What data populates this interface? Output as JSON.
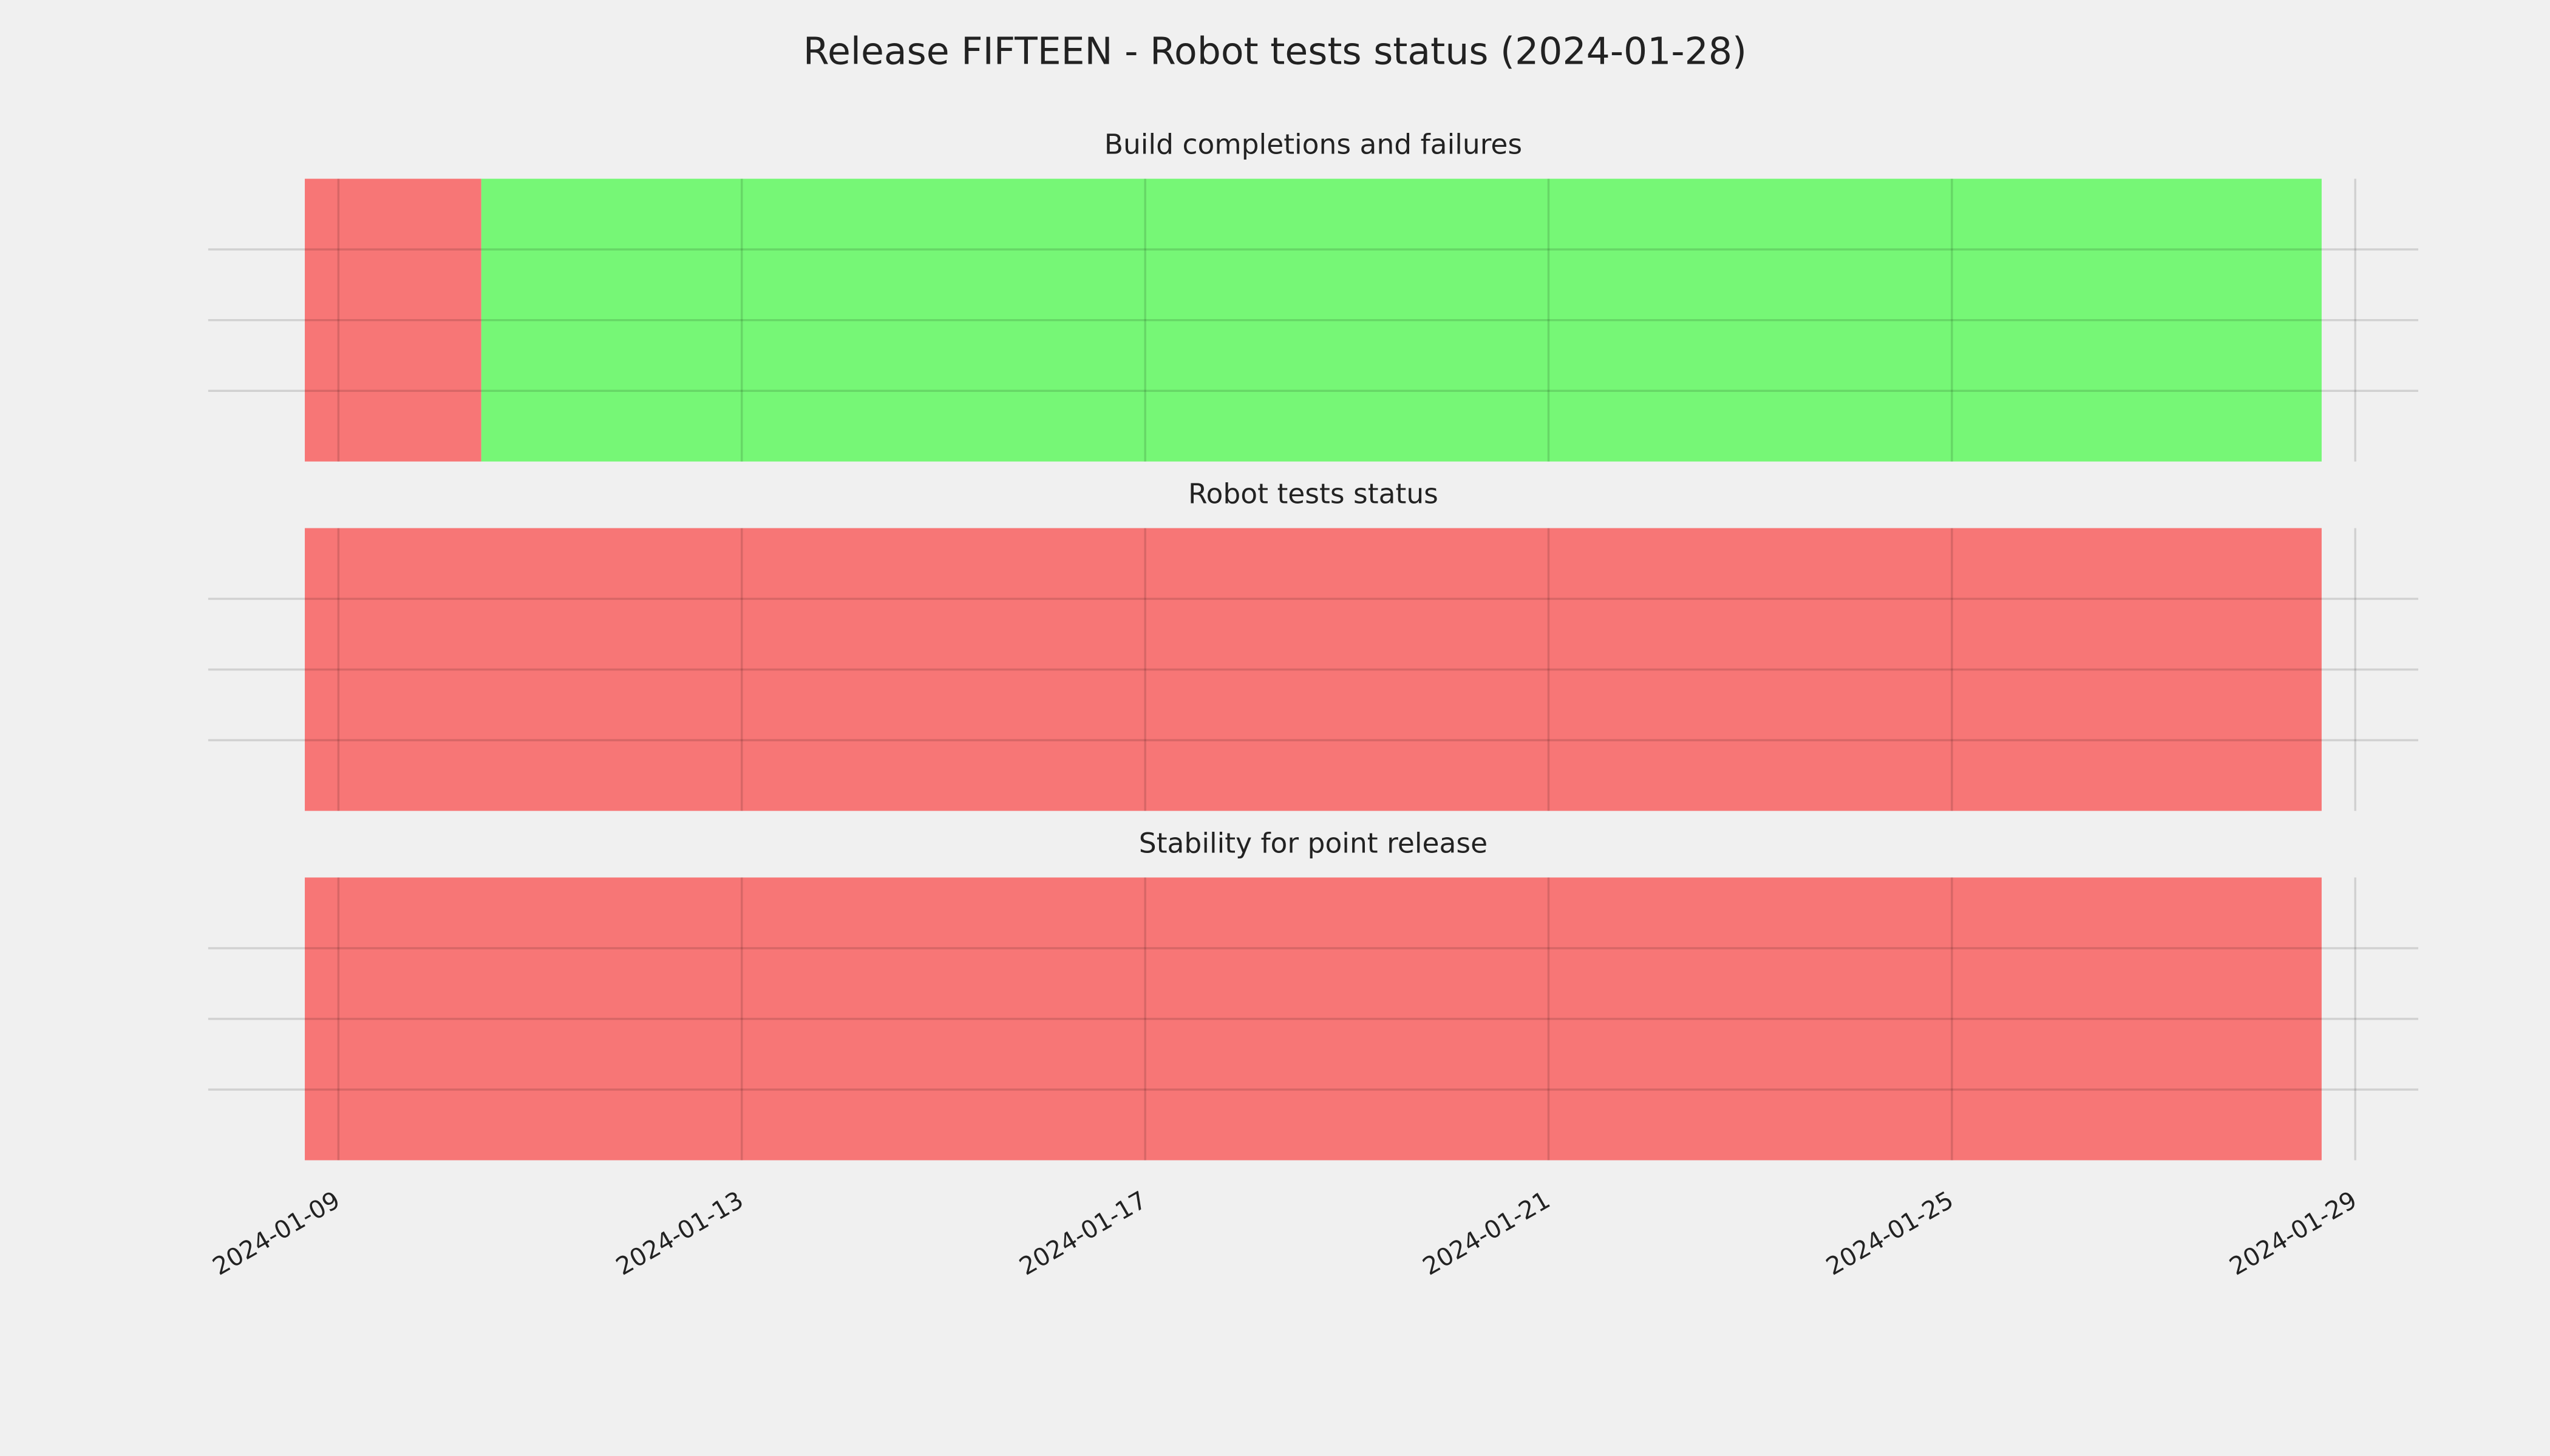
{
  "title": "Release FIFTEEN - Robot tests status (2024-01-28)",
  "chart_data": [
    {
      "type": "timeline",
      "title": "Build completions and failures",
      "segments": [
        {
          "start": "2024-01-08T16:00",
          "end": "2024-01-10T10:00",
          "color": "#f77676"
        },
        {
          "start": "2024-01-10T10:00",
          "end": "2024-01-28T16:00",
          "color": "#76f776"
        }
      ],
      "xlim": [
        "2024-01-07T17:00",
        "2024-01-29T15:00"
      ],
      "xticks": [
        "2024-01-09",
        "2024-01-13",
        "2024-01-17",
        "2024-01-21",
        "2024-01-25",
        "2024-01-29"
      ],
      "ylim": [
        0,
        1
      ],
      "yticks": [
        0.25,
        0.5,
        0.75
      ],
      "grid": true
    },
    {
      "type": "timeline",
      "title": "Robot tests status",
      "segments": [
        {
          "start": "2024-01-08T16:00",
          "end": "2024-01-28T16:00",
          "color": "#f77676"
        }
      ],
      "xlim": [
        "2024-01-07T17:00",
        "2024-01-29T15:00"
      ],
      "xticks": [
        "2024-01-09",
        "2024-01-13",
        "2024-01-17",
        "2024-01-21",
        "2024-01-25",
        "2024-01-29"
      ],
      "ylim": [
        0,
        1
      ],
      "yticks": [
        0.25,
        0.5,
        0.75
      ],
      "grid": true
    },
    {
      "type": "timeline",
      "title": "Stability for point release",
      "segments": [
        {
          "start": "2024-01-08T16:00",
          "end": "2024-01-28T16:00",
          "color": "#f77676"
        }
      ],
      "xlim": [
        "2024-01-07T17:00",
        "2024-01-29T15:00"
      ],
      "xticks": [
        "2024-01-09",
        "2024-01-13",
        "2024-01-17",
        "2024-01-21",
        "2024-01-25",
        "2024-01-29"
      ],
      "ylim": [
        0,
        1
      ],
      "yticks": [
        0.25,
        0.5,
        0.75
      ],
      "grid": true,
      "show_xtick_labels": true
    }
  ]
}
